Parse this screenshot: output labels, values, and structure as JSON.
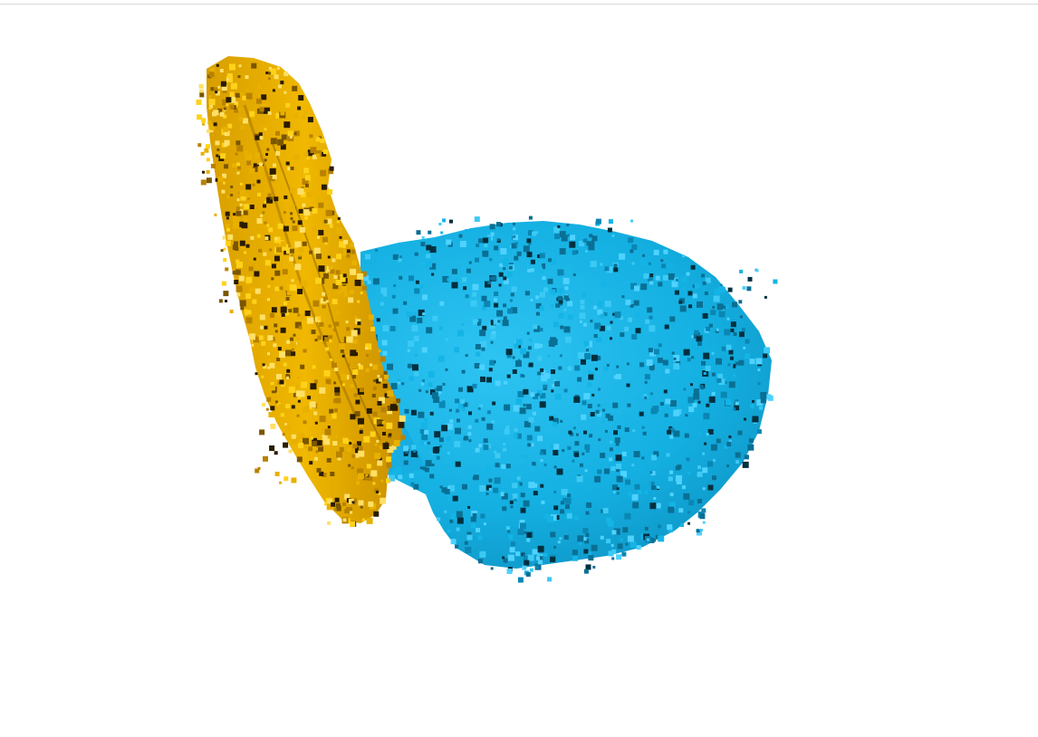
{
  "viewer": {
    "background_color": "#ffffff",
    "frame_border_color": "#d9d9d9"
  },
  "meshes": [
    {
      "name": "gold-voxel-structure",
      "base_color": "#e8b000",
      "highlight_color": "#ffd21a",
      "shadow_color": "#7a5600",
      "dark_color": "#2a1c00"
    },
    {
      "name": "blue-voxel-structure",
      "base_color": "#14b4e6",
      "highlight_color": "#4fd2ff",
      "shadow_color": "#0a6f94",
      "dark_color": "#02303f"
    }
  ]
}
